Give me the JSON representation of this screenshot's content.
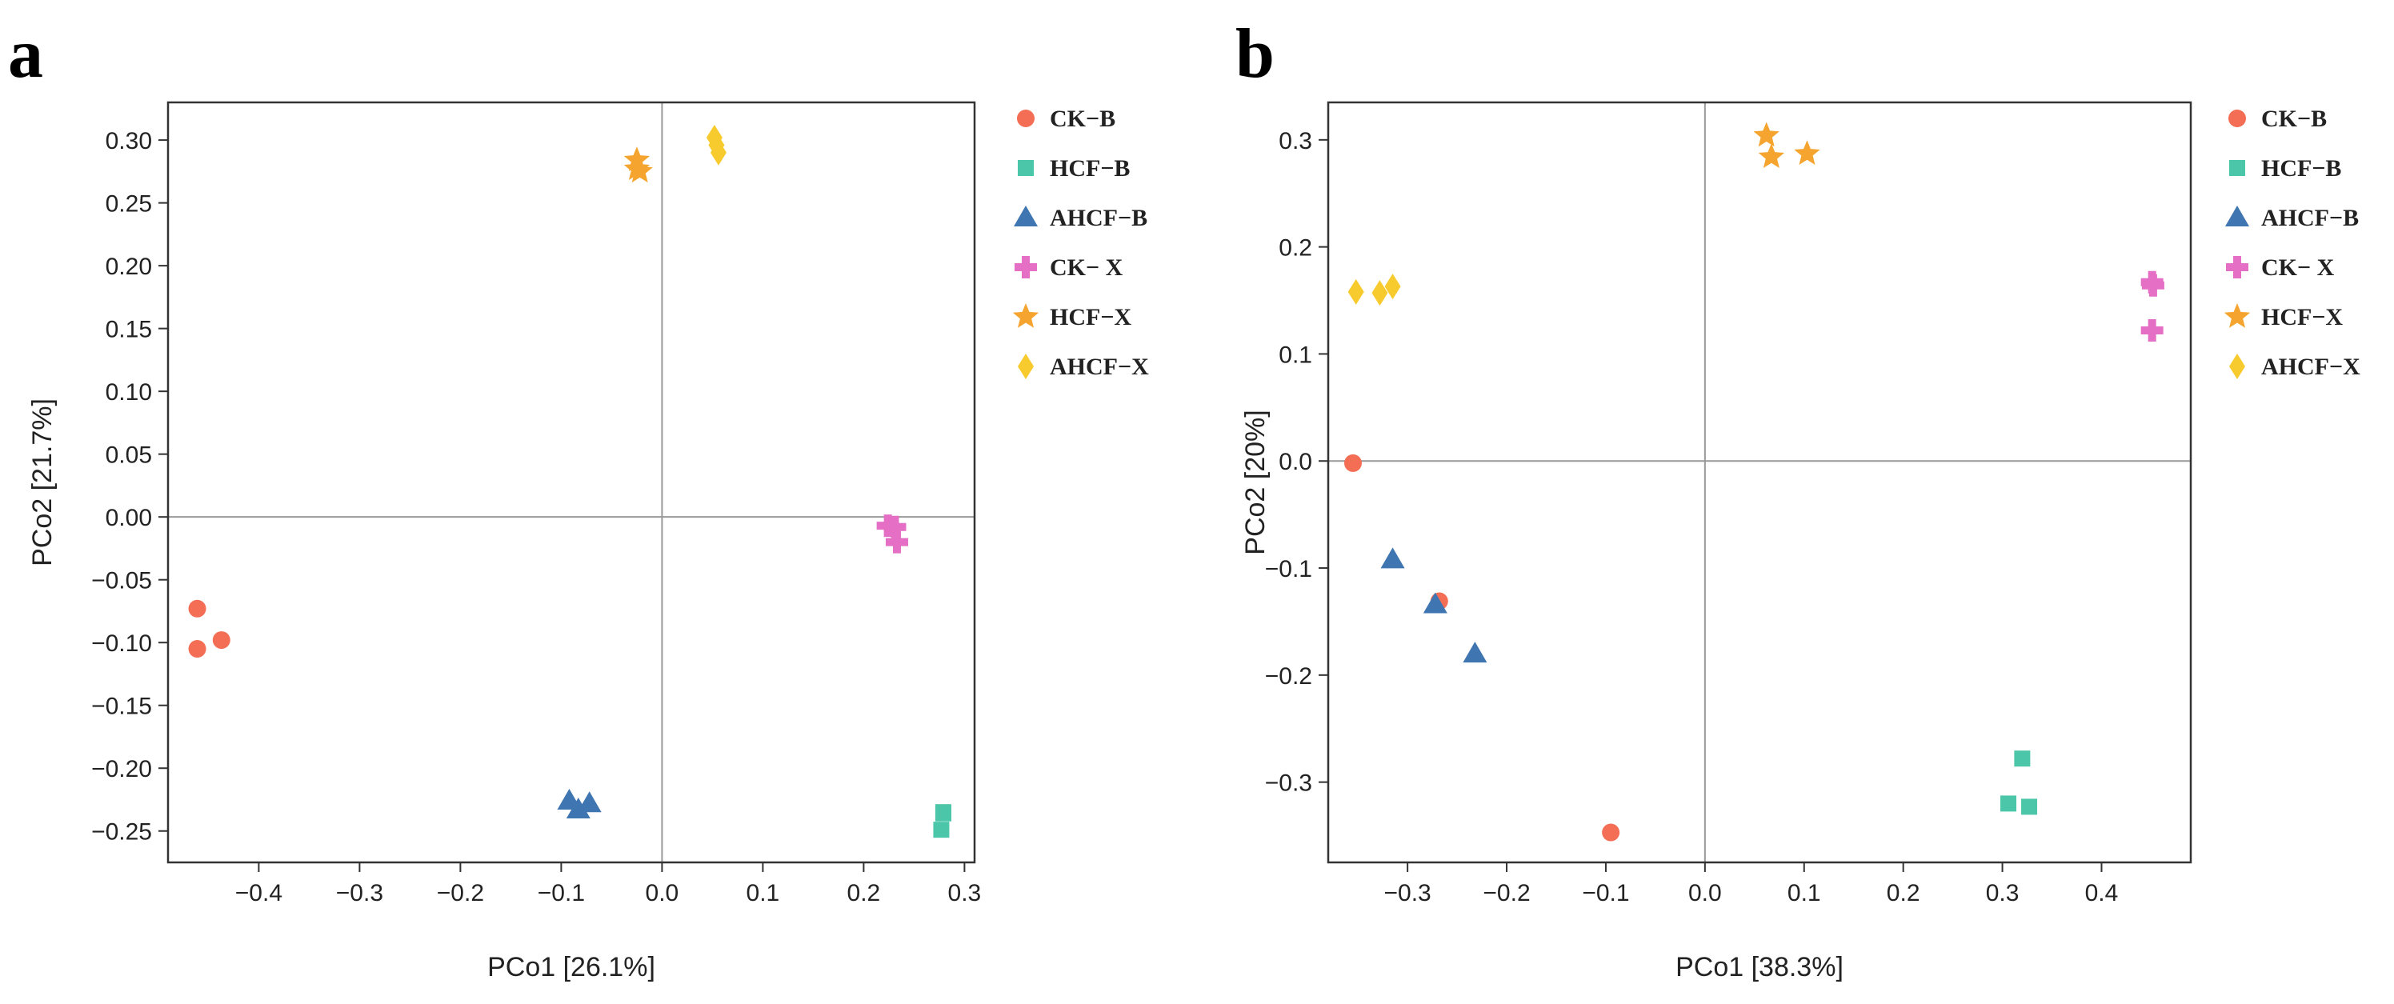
{
  "colors": {
    "CK-B": "#F46D55",
    "HCF-B": "#4CC6A8",
    "AHCF-B": "#3F75B0",
    "CK-X": "#E46FC4",
    "HCF-X": "#F5A52F",
    "AHCF-X": "#F7CB2E",
    "axis": "#333333",
    "zero_line": "#999999"
  },
  "chart_data": [
    {
      "type": "scatter",
      "panel_label": "a",
      "title": "",
      "xlabel": "PCo1 [26.1%]",
      "ylabel": "PCo2 [21.7%]",
      "xlim": [
        -0.49,
        0.31
      ],
      "ylim": [
        -0.275,
        0.33
      ],
      "xticks": [
        -0.4,
        -0.3,
        -0.2,
        -0.1,
        0.0,
        0.1,
        0.2,
        0.3
      ],
      "xtick_labels": [
        "−0.4",
        "−0.3",
        "−0.2",
        "−0.1",
        "0.0",
        "0.1",
        "0.2",
        "0.3"
      ],
      "yticks": [
        -0.25,
        -0.2,
        -0.15,
        -0.1,
        -0.05,
        0.0,
        0.05,
        0.1,
        0.15,
        0.2,
        0.25,
        0.3
      ],
      "ytick_labels": [
        "−0.25",
        "−0.20",
        "−0.15",
        "−0.10",
        "−0.05",
        "0.00",
        "0.05",
        "0.10",
        "0.15",
        "0.20",
        "0.25",
        "0.30"
      ],
      "zero_lines": true,
      "legend": [
        "CK−B",
        "HCF−B",
        "AHCF−B",
        "CK− X",
        "HCF−X",
        "AHCF−X"
      ],
      "series": [
        {
          "name": "CK-B",
          "marker": "circle",
          "points": [
            [
              -0.461,
              -0.073
            ],
            [
              -0.461,
              -0.105
            ],
            [
              -0.437,
              -0.098
            ]
          ]
        },
        {
          "name": "HCF-B",
          "marker": "square",
          "points": [
            [
              0.279,
              -0.235
            ],
            [
              0.277,
              -0.249
            ],
            [
              0.279,
              -0.236
            ]
          ]
        },
        {
          "name": "AHCF-B",
          "marker": "triangle",
          "points": [
            [
              -0.092,
              -0.226
            ],
            [
              -0.083,
              -0.233
            ],
            [
              -0.072,
              -0.228
            ]
          ]
        },
        {
          "name": "CK-X",
          "marker": "plus",
          "points": [
            [
              0.224,
              -0.007
            ],
            [
              0.231,
              -0.008
            ],
            [
              0.233,
              -0.02
            ]
          ]
        },
        {
          "name": "HCF-X",
          "marker": "star",
          "points": [
            [
              -0.025,
              0.284
            ],
            [
              -0.025,
              0.277
            ],
            [
              -0.022,
              0.275
            ]
          ]
        },
        {
          "name": "AHCF-X",
          "marker": "diamond",
          "points": [
            [
              0.052,
              0.302
            ],
            [
              0.056,
              0.29
            ],
            [
              0.054,
              0.296
            ]
          ]
        }
      ]
    },
    {
      "type": "scatter",
      "panel_label": "b",
      "title": "",
      "xlabel": "PCo1 [38.3%]",
      "ylabel": "PCo2 [20%]",
      "xlim": [
        -0.38,
        0.49
      ],
      "ylim": [
        -0.375,
        0.335
      ],
      "xticks": [
        -0.3,
        -0.2,
        -0.1,
        0.0,
        0.1,
        0.2,
        0.3,
        0.4
      ],
      "xtick_labels": [
        "−0.3",
        "−0.2",
        "−0.1",
        "0.0",
        "0.1",
        "0.2",
        "0.3",
        "0.4"
      ],
      "yticks": [
        -0.3,
        -0.2,
        -0.1,
        0.0,
        0.1,
        0.2,
        0.3
      ],
      "ytick_labels": [
        "−0.3",
        "−0.2",
        "−0.1",
        "0.0",
        "0.1",
        "0.2",
        "0.3"
      ],
      "zero_lines": true,
      "legend": [
        "CK−B",
        "HCF−B",
        "AHCF−B",
        "CK− X",
        "HCF−X",
        "AHCF−X"
      ],
      "series": [
        {
          "name": "CK-B",
          "marker": "circle",
          "points": [
            [
              -0.355,
              -0.002
            ],
            [
              -0.268,
              -0.131
            ],
            [
              -0.095,
              -0.347
            ]
          ]
        },
        {
          "name": "HCF-B",
          "marker": "square",
          "points": [
            [
              0.32,
              -0.278
            ],
            [
              0.306,
              -0.32
            ],
            [
              0.327,
              -0.323
            ]
          ]
        },
        {
          "name": "AHCF-B",
          "marker": "triangle",
          "points": [
            [
              -0.315,
              -0.092
            ],
            [
              -0.272,
              -0.134
            ],
            [
              -0.232,
              -0.18
            ]
          ]
        },
        {
          "name": "CK-X",
          "marker": "plus",
          "points": [
            [
              0.451,
              0.167
            ],
            [
              0.452,
              0.164
            ],
            [
              0.451,
              0.122
            ]
          ]
        },
        {
          "name": "HCF-X",
          "marker": "star",
          "points": [
            [
              0.062,
              0.304
            ],
            [
              0.067,
              0.284
            ],
            [
              0.103,
              0.287
            ]
          ]
        },
        {
          "name": "AHCF-X",
          "marker": "diamond",
          "points": [
            [
              -0.352,
              0.158
            ],
            [
              -0.328,
              0.157
            ],
            [
              -0.315,
              0.163
            ]
          ]
        }
      ]
    }
  ]
}
